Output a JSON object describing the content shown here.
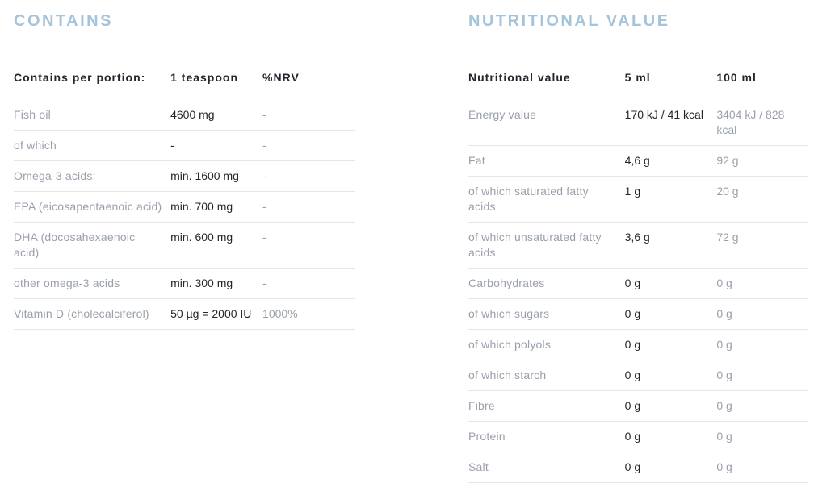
{
  "colors": {
    "title_blue": "#a5c3d9",
    "text_dark": "#25252d",
    "text_gray": "#9aa0ab",
    "divider": "#e5e6e8",
    "background": "#ffffff"
  },
  "contains": {
    "title": "CONTAINS",
    "headers": [
      "Contains per portion:",
      "1 teaspoon",
      "%NRV"
    ],
    "rows": [
      {
        "label": "Fish oil",
        "amount": "4600 mg",
        "nrv": "-"
      },
      {
        "label": "of which",
        "amount": "-",
        "nrv": "-"
      },
      {
        "label": "Omega-3 acids:",
        "amount": "min. 1600 mg",
        "nrv": "-"
      },
      {
        "label": "EPA (eicosapentaenoic acid)",
        "amount": "min. 700 mg",
        "nrv": "-"
      },
      {
        "label": "DHA (docosahexaenoic acid)",
        "amount": "min. 600 mg",
        "nrv": "-"
      },
      {
        "label": "other omega-3 acids",
        "amount": "min. 300 mg",
        "nrv": "-"
      },
      {
        "label": "Vitamin D (cholecalciferol)",
        "amount": "50 µg = 2000 IU",
        "nrv": "1000%"
      }
    ]
  },
  "nutritional": {
    "title": "NUTRITIONAL VALUE",
    "headers": [
      "Nutritional value",
      "5 ml",
      "100 ml"
    ],
    "rows": [
      {
        "label": "Energy value",
        "per5ml": "170 kJ / 41 kcal",
        "per100ml": "3404 kJ / 828 kcal"
      },
      {
        "label": "Fat",
        "per5ml": "4,6 g",
        "per100ml": "92 g"
      },
      {
        "label": "of which saturated fatty acids",
        "per5ml": "1 g",
        "per100ml": "20 g"
      },
      {
        "label": "of which unsaturated fatty acids",
        "per5ml": "3,6 g",
        "per100ml": "72 g"
      },
      {
        "label": "Carbohydrates",
        "per5ml": "0 g",
        "per100ml": "0 g"
      },
      {
        "label": "of which sugars",
        "per5ml": "0 g",
        "per100ml": "0 g"
      },
      {
        "label": "of which polyols",
        "per5ml": "0 g",
        "per100ml": "0 g"
      },
      {
        "label": "of which starch",
        "per5ml": "0 g",
        "per100ml": "0 g"
      },
      {
        "label": "Fibre",
        "per5ml": "0 g",
        "per100ml": "0 g"
      },
      {
        "label": "Protein",
        "per5ml": "0 g",
        "per100ml": "0 g"
      },
      {
        "label": "Salt",
        "per5ml": "0 g",
        "per100ml": "0 g"
      }
    ]
  }
}
